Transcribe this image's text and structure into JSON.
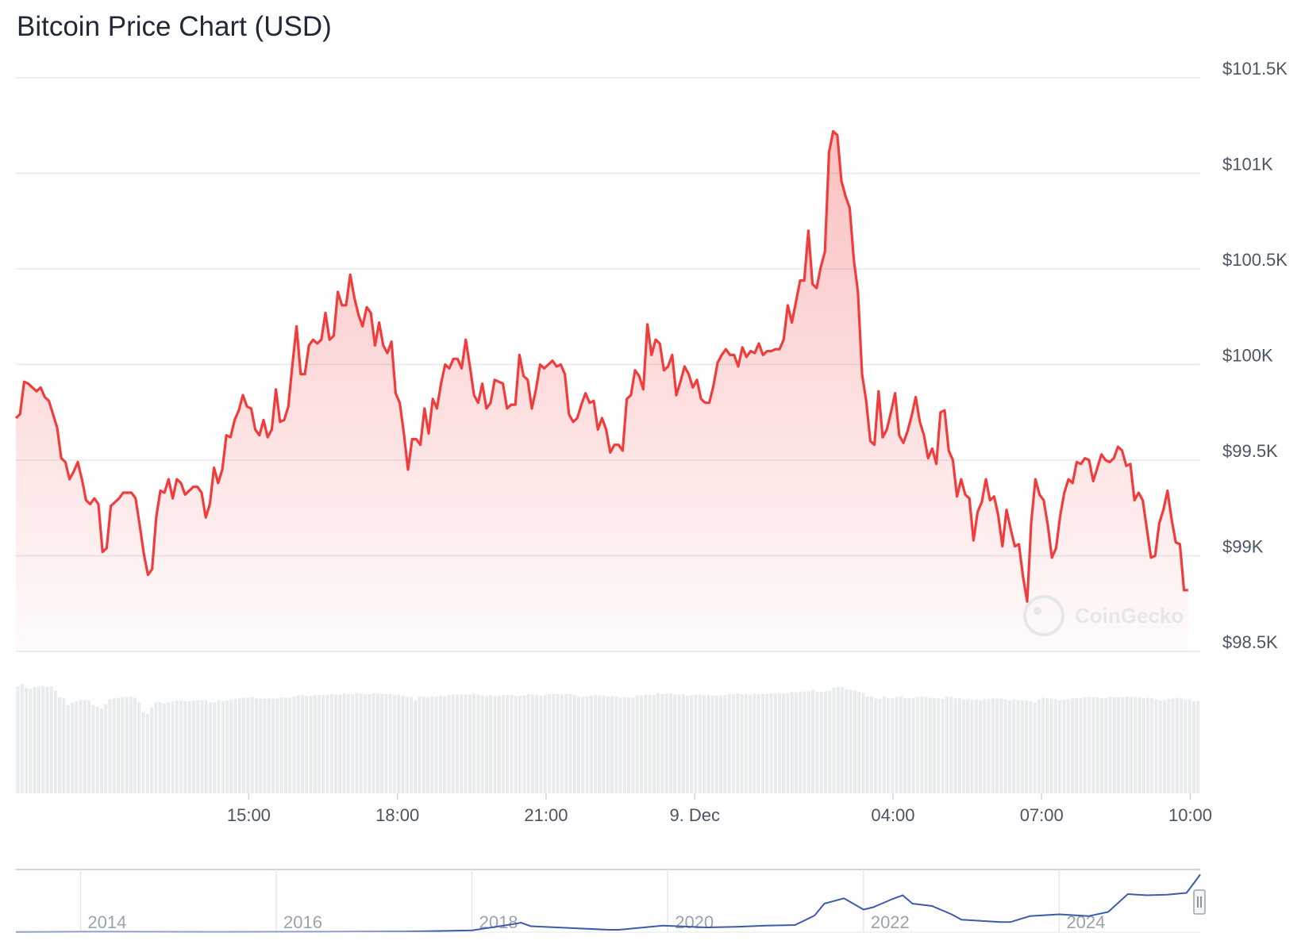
{
  "chart_data": {
    "type": "area",
    "title": "Bitcoin Price Chart (USD)",
    "xlabel": "",
    "ylabel": "",
    "ylim": [
      98500,
      101500
    ],
    "y_ticks": [
      "$101.5K",
      "$101K",
      "$100.5K",
      "$100K",
      "$99.5K",
      "$99K",
      "$98.5K"
    ],
    "y_tick_values": [
      101500,
      101000,
      100500,
      100000,
      99500,
      99000,
      98500
    ],
    "x_ticks": [
      "15:00",
      "18:00",
      "21:00",
      "9. Dec",
      "04:00",
      "07:00",
      "10:00"
    ],
    "x_tick_hours": [
      3,
      6,
      9,
      12,
      16,
      19,
      22
    ],
    "x_range_hours": [
      -1.7,
      22.2
    ],
    "grid": true,
    "legend": "none",
    "line_color": "#f23c3c",
    "series": [
      {
        "hours_offset_start": -1.7,
        "hours_step": 0.0833,
        "values": [
          99720,
          99740,
          99910,
          99900,
          99880,
          99860,
          99880,
          99830,
          99810,
          99740,
          99670,
          99510,
          99490,
          99400,
          99440,
          99490,
          99400,
          99290,
          99270,
          99300,
          99270,
          99020,
          99040,
          99260,
          99280,
          99300,
          99330,
          99330,
          99330,
          99300,
          99160,
          99010,
          98900,
          98930,
          99200,
          99340,
          99330,
          99400,
          99300,
          99400,
          99380,
          99320,
          99340,
          99360,
          99360,
          99330,
          99200,
          99270,
          99460,
          99380,
          99450,
          99630,
          99620,
          99710,
          99760,
          99840,
          99780,
          99770,
          99660,
          99630,
          99710,
          99620,
          99660,
          99870,
          99700,
          99710,
          99780,
          100000,
          100200,
          99950,
          99950,
          100100,
          100130,
          100110,
          100130,
          100270,
          100130,
          100150,
          100380,
          100310,
          100310,
          100470,
          100350,
          100260,
          100200,
          100300,
          100270,
          100100,
          100220,
          100100,
          100060,
          100120,
          99850,
          99800,
          99640,
          99450,
          99610,
          99610,
          99580,
          99770,
          99640,
          99820,
          99770,
          99900,
          100000,
          99980,
          100030,
          100030,
          99980,
          100130,
          99990,
          99840,
          99800,
          99900,
          99770,
          99800,
          99920,
          99910,
          99900,
          99770,
          99790,
          99790,
          100050,
          99940,
          99920,
          99770,
          99870,
          100000,
          99980,
          100000,
          100020,
          99990,
          100000,
          99950,
          99740,
          99700,
          99720,
          99790,
          99850,
          99800,
          99810,
          99660,
          99720,
          99660,
          99540,
          99580,
          99580,
          99550,
          99820,
          99840,
          99970,
          99940,
          99870,
          100210,
          100050,
          100130,
          100110,
          99970,
          99990,
          100050,
          99840,
          99910,
          99990,
          99950,
          99880,
          99920,
          99820,
          99800,
          99800,
          99890,
          100010,
          100050,
          100080,
          100050,
          100050,
          99990,
          100090,
          100040,
          100070,
          100060,
          100110,
          100050,
          100070,
          100070,
          100080,
          100080,
          100130,
          100310,
          100220,
          100330,
          100440,
          100440,
          100700,
          100420,
          100400,
          100510,
          100590,
          101110,
          101220,
          101200,
          100960,
          100880,
          100820,
          100550,
          100380,
          99950,
          99810,
          99600,
          99580,
          99860,
          99620,
          99660,
          99750,
          99850,
          99630,
          99590,
          99650,
          99730,
          99830,
          99700,
          99630,
          99510,
          99560,
          99480,
          99750,
          99760,
          99550,
          99500,
          99310,
          99400,
          99320,
          99300,
          99080,
          99230,
          99280,
          99400,
          99290,
          99310,
          99210,
          99050,
          99240,
          99140,
          99050,
          99060,
          98890,
          98760,
          99180,
          99400,
          99320,
          99290,
          99160,
          98990,
          99040,
          99210,
          99330,
          99400,
          99380,
          99490,
          99480,
          99510,
          99500,
          99390,
          99460,
          99530,
          99500,
          99490,
          99510,
          99570,
          99550,
          99470,
          99480,
          99290,
          99330,
          99290,
          99140,
          98990,
          99000,
          99170,
          99240,
          99340,
          99190,
          99070,
          99060,
          98820,
          98820
        ]
      }
    ],
    "volume": {
      "hours_offset_start": -1.7,
      "hours_step": 0.0833,
      "values": [
        400,
        410,
        395,
        392,
        398,
        400,
        402,
        398,
        401,
        385,
        360,
        355,
        330,
        340,
        345,
        350,
        350,
        348,
        330,
        325,
        318,
        335,
        352,
        356,
        358,
        360,
        362,
        362,
        358,
        340,
        305,
        298,
        322,
        340,
        342,
        338,
        340,
        344,
        348,
        346,
        345,
        344,
        347,
        348,
        348,
        350,
        342,
        340,
        350,
        346,
        348,
        352,
        354,
        356,
        358,
        358,
        360,
        356,
        354,
        354,
        356,
        354,
        355,
        360,
        358,
        358,
        362,
        366,
        368,
        365,
        365,
        368,
        368,
        368,
        370,
        372,
        370,
        370,
        374,
        372,
        372,
        376,
        374,
        372,
        372,
        374,
        374,
        372,
        372,
        372,
        368,
        370,
        366,
        362,
        360,
        348,
        362,
        362,
        360,
        364,
        362,
        366,
        364,
        368,
        370,
        370,
        372,
        372,
        370,
        374,
        370,
        366,
        364,
        368,
        364,
        366,
        368,
        368,
        368,
        364,
        366,
        366,
        372,
        370,
        370,
        366,
        368,
        372,
        372,
        372,
        372,
        372,
        372,
        370,
        364,
        362,
        362,
        366,
        368,
        366,
        366,
        362,
        364,
        362,
        358,
        360,
        360,
        358,
        366,
        366,
        370,
        370,
        368,
        376,
        372,
        374,
        374,
        370,
        370,
        372,
        366,
        368,
        370,
        370,
        368,
        368,
        366,
        366,
        366,
        368,
        372,
        372,
        374,
        372,
        372,
        370,
        374,
        372,
        373,
        373,
        374,
        373,
        374,
        374,
        375,
        380,
        378,
        380,
        382,
        382,
        388,
        380,
        380,
        382,
        384,
        395,
        398,
        398,
        390,
        388,
        386,
        380,
        376,
        364,
        362,
        355,
        354,
        362,
        356,
        356,
        360,
        362,
        356,
        356,
        358,
        360,
        362,
        360,
        358,
        356,
        356,
        354,
        362,
        362,
        356,
        356,
        352,
        354,
        352,
        352,
        348,
        352,
        354,
        356,
        354,
        354,
        352,
        348,
        352,
        350,
        348,
        348,
        344,
        340,
        352,
        358,
        356,
        355,
        352,
        348,
        350,
        352,
        356,
        358,
        357,
        360,
        360,
        360,
        360,
        356,
        358,
        360,
        360,
        360,
        360,
        362,
        362,
        360,
        360,
        356,
        358,
        356,
        352,
        348,
        350,
        354,
        356,
        358,
        355,
        352,
        352,
        346,
        346
      ]
    },
    "navigator": {
      "x_ticks": [
        "2014",
        "2016",
        "2018",
        "2020",
        "2022",
        "2024"
      ],
      "x_tick_years": [
        2013.5,
        2015.5,
        2017.5,
        2019.5,
        2021.5,
        2023.5
      ],
      "x_range_years": [
        2012.84,
        2024.94
      ],
      "line_color": "#3b5bab",
      "years": [
        2012.84,
        2013.5,
        2014.0,
        2015.0,
        2016.0,
        2016.8,
        2017.0,
        2017.5,
        2017.9,
        2018.0,
        2018.1,
        2018.5,
        2018.9,
        2019.0,
        2019.45,
        2019.6,
        2019.9,
        2020.2,
        2020.5,
        2020.8,
        2021.0,
        2021.1,
        2021.3,
        2021.5,
        2021.6,
        2021.8,
        2021.9,
        2022.0,
        2022.2,
        2022.4,
        2022.5,
        2022.9,
        2023.0,
        2023.2,
        2023.5,
        2023.8,
        2024.0,
        2024.2,
        2024.4,
        2024.6,
        2024.8,
        2024.9,
        2024.94
      ],
      "values": [
        0.1,
        0.5,
        0.5,
        0.3,
        0.5,
        1.0,
        1.5,
        3,
        13,
        16,
        10,
        7,
        4,
        4,
        11,
        10,
        8,
        9,
        11,
        12,
        28,
        48,
        57,
        38,
        42,
        56,
        62,
        48,
        44,
        30,
        21,
        17,
        17,
        27,
        30,
        27,
        34,
        64,
        62,
        63,
        66,
        88,
        97
      ]
    },
    "watermark": "CoinGecko"
  }
}
